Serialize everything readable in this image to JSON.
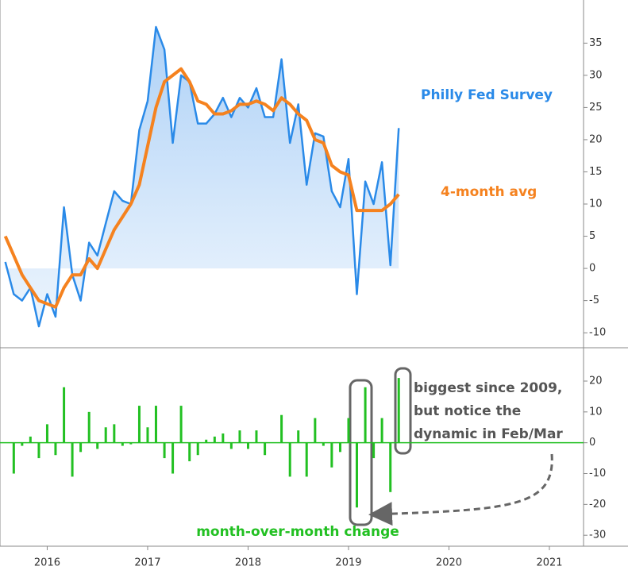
{
  "chart_data": [
    {
      "type": "line",
      "area": true,
      "x": [
        2015.583,
        2015.667,
        2015.75,
        2015.833,
        2015.917,
        2016.0,
        2016.083,
        2016.167,
        2016.25,
        2016.333,
        2016.417,
        2016.5,
        2016.583,
        2016.667,
        2016.75,
        2016.833,
        2016.917,
        2017.0,
        2017.083,
        2017.167,
        2017.25,
        2017.333,
        2017.417,
        2017.5,
        2017.583,
        2017.667,
        2017.75,
        2017.833,
        2017.917,
        2018.0,
        2018.083,
        2018.167,
        2018.25,
        2018.333,
        2018.417,
        2018.5,
        2018.583,
        2018.667,
        2018.75,
        2018.833,
        2018.917,
        2019.0,
        2019.083,
        2019.167,
        2019.25,
        2019.333,
        2019.417,
        2019.5
      ],
      "series": [
        {
          "name": "Philly Fed Survey",
          "color": "#2a8ae8",
          "values": [
            1,
            -4,
            -5,
            -3,
            -9,
            -4,
            -7.5,
            9.5,
            -1,
            -5,
            4,
            2,
            7,
            12,
            10.5,
            10,
            21.5,
            26,
            37.5,
            34,
            19.5,
            30,
            29,
            22.5,
            22.5,
            24,
            26.5,
            23.5,
            26.5,
            25,
            28,
            23.5,
            23.5,
            32.5,
            19.5,
            25.5,
            13,
            21,
            20.5,
            12,
            9.5,
            17,
            -4,
            13.5,
            10,
            16.5,
            0.5,
            21.8
          ]
        },
        {
          "name": "4-month avg",
          "color": "#f5821f",
          "values": [
            5,
            2,
            -1,
            -3,
            -5,
            -5.5,
            -6,
            -3,
            -1,
            -1,
            1.5,
            0,
            3,
            6,
            8,
            10,
            13,
            19,
            25,
            29,
            30,
            31,
            29,
            26,
            25.5,
            24,
            24,
            24.5,
            25.5,
            25.5,
            26,
            25.5,
            24.5,
            26.5,
            25.5,
            24,
            23,
            20,
            19.5,
            16,
            15,
            14.5,
            9,
            9,
            9,
            9,
            10,
            11.5
          ]
        }
      ],
      "xlim": [
        2015.53,
        2021.34
      ],
      "ylim": [
        -12.2,
        41.7
      ],
      "yticks": [
        -10,
        -5,
        0,
        5,
        10,
        15,
        20,
        25,
        30,
        35
      ]
    },
    {
      "type": "bar",
      "x": [
        2015.667,
        2015.75,
        2015.833,
        2015.917,
        2016.0,
        2016.083,
        2016.167,
        2016.25,
        2016.333,
        2016.417,
        2016.5,
        2016.583,
        2016.667,
        2016.75,
        2016.833,
        2016.917,
        2017.0,
        2017.083,
        2017.167,
        2017.25,
        2017.333,
        2017.417,
        2017.5,
        2017.583,
        2017.667,
        2017.75,
        2017.833,
        2017.917,
        2018.0,
        2018.083,
        2018.167,
        2018.25,
        2018.333,
        2018.417,
        2018.5,
        2018.583,
        2018.667,
        2018.75,
        2018.833,
        2018.917,
        2019.0,
        2019.083,
        2019.167,
        2019.25,
        2019.333,
        2019.417,
        2019.5
      ],
      "series": [
        {
          "name": "month-over-month change",
          "color": "#22c022",
          "values": [
            -10,
            -1,
            2,
            -5,
            6,
            -4,
            18,
            -11,
            -3,
            10,
            -2,
            5,
            6,
            -1,
            -0.5,
            12,
            5,
            12,
            -5,
            -10,
            12,
            -6,
            -4,
            1,
            2,
            3,
            -2,
            4,
            -2,
            4,
            -4,
            0,
            9,
            -11,
            4,
            -11,
            8,
            -1,
            -8,
            -3,
            8,
            -21,
            18,
            -5,
            8,
            -16,
            21
          ]
        }
      ],
      "annotation": [
        "biggest since 2009,",
        "but notice the",
        "dynamic in Feb/Mar"
      ],
      "xlim": [
        2015.53,
        2021.34
      ],
      "xticks": [
        2016,
        2017,
        2018,
        2019,
        2020,
        2021
      ],
      "ylim": [
        -33.3,
        30.3
      ],
      "yticks": [
        20,
        10,
        0,
        -10,
        -20,
        -30
      ]
    }
  ]
}
